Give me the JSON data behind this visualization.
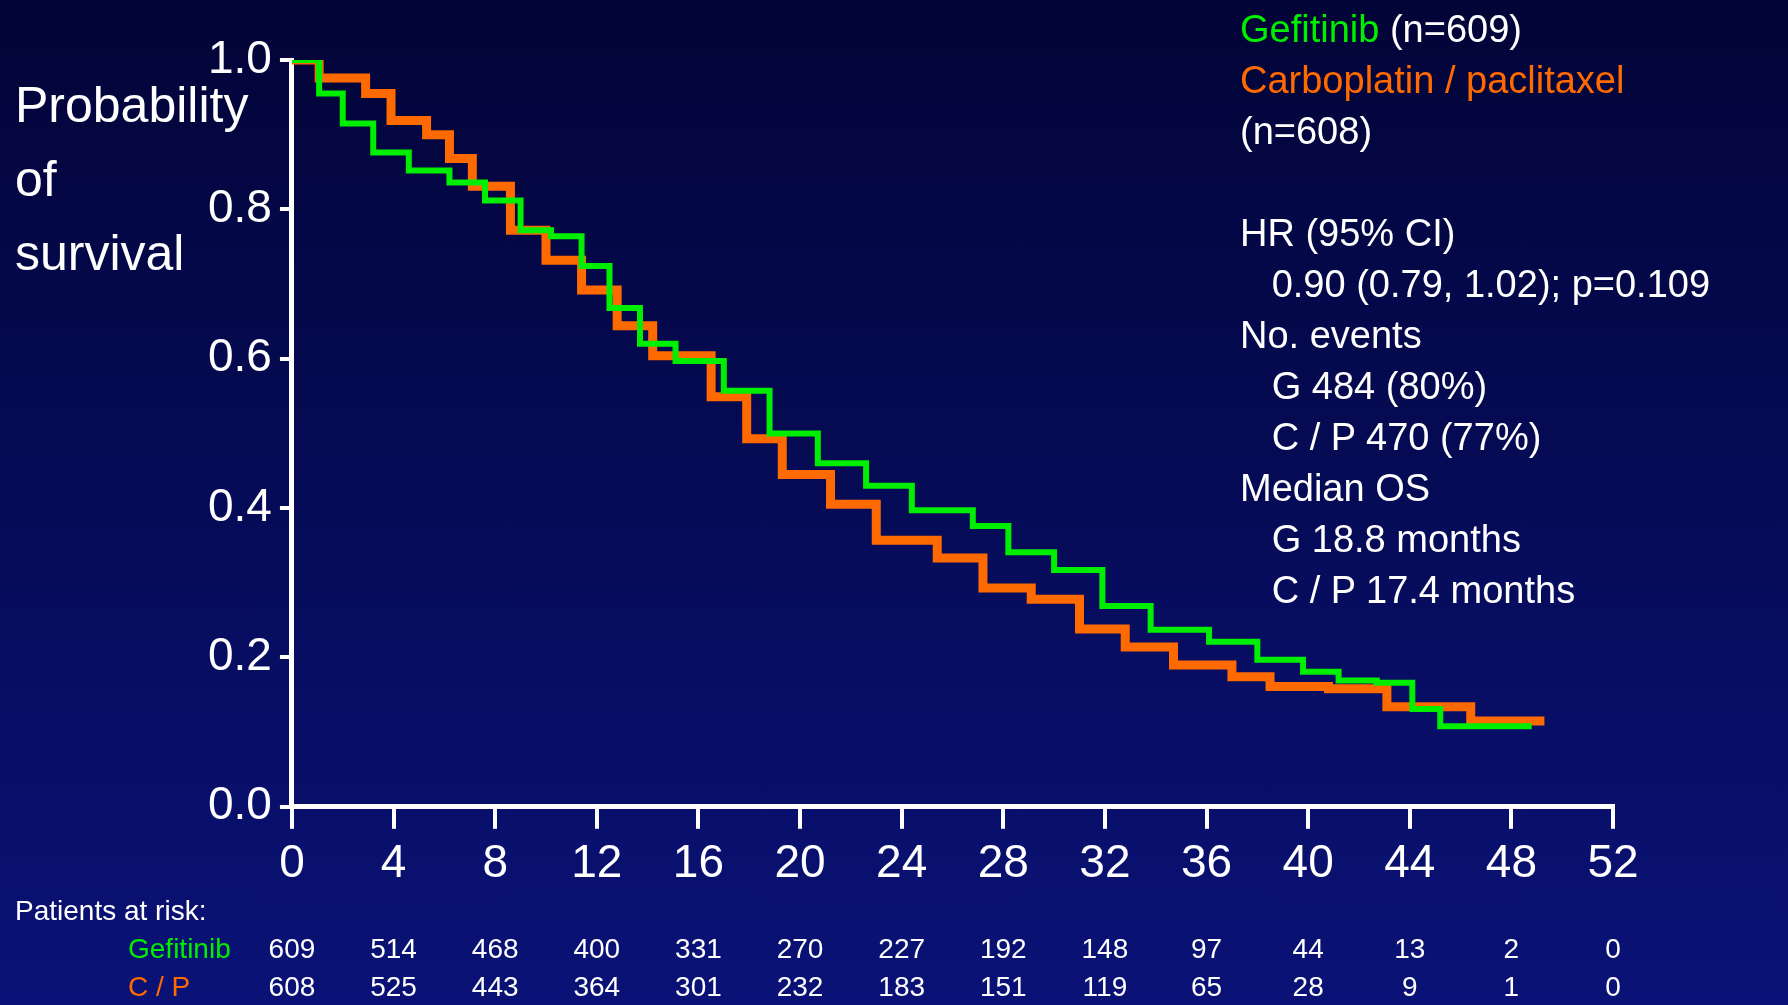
{
  "chart_data": {
    "type": "step",
    "ylabel": "Probability of survival",
    "legend": "top right",
    "xlim": [
      0,
      52
    ],
    "xticks": [
      0,
      4,
      8,
      12,
      16,
      20,
      24,
      28,
      32,
      36,
      40,
      44,
      48,
      52
    ],
    "ylim": [
      0,
      1
    ],
    "yticks": [
      {
        "value": 0,
        "label": "0.0"
      },
      {
        "value": 0.2,
        "label": "0.2"
      },
      {
        "value": 0.4,
        "label": "0.4"
      },
      {
        "value": 0.6,
        "label": "0.6"
      },
      {
        "value": 0.8,
        "label": "0.8"
      },
      {
        "value": 1,
        "label": "1.0"
      }
    ],
    "series": [
      {
        "name": "Gefitinib",
        "color": "#00ee00",
        "x": [
          0,
          1.07,
          2,
          3.2,
          4.6,
          6.2,
          7.6,
          9,
          10.2,
          11.4,
          12.5,
          13.7,
          15.1,
          17,
          18.8,
          20.7,
          22.6,
          24.4,
          26.8,
          28.2,
          30,
          31.9,
          33.8,
          36.1,
          38,
          39.8,
          41.2,
          42.7,
          44.1,
          45.2,
          48.8
        ],
        "values": [
          1,
          0.955,
          0.915,
          0.876,
          0.852,
          0.836,
          0.812,
          0.772,
          0.764,
          0.724,
          0.668,
          0.62,
          0.597,
          0.557,
          0.5,
          0.46,
          0.43,
          0.397,
          0.376,
          0.341,
          0.317,
          0.269,
          0.237,
          0.221,
          0.197,
          0.181,
          0.169,
          0.166,
          0.131,
          0.108,
          0.108
        ]
      },
      {
        "name": "Carboplatin / paclitaxel",
        "color": "#ff6a00",
        "x": [
          0,
          1.07,
          2.9,
          3.9,
          5.3,
          6.2,
          7.1,
          8.6,
          10,
          11.4,
          12.8,
          14.2,
          16.5,
          17.9,
          19.3,
          21.2,
          23,
          25.4,
          27.2,
          29.1,
          31,
          32.8,
          34.7,
          37,
          38.5,
          40.8,
          43.1,
          46.4,
          49.3
        ],
        "values": [
          1,
          0.976,
          0.955,
          0.919,
          0.9,
          0.868,
          0.831,
          0.772,
          0.732,
          0.692,
          0.644,
          0.604,
          0.549,
          0.493,
          0.445,
          0.405,
          0.357,
          0.333,
          0.293,
          0.278,
          0.238,
          0.214,
          0.19,
          0.174,
          0.161,
          0.158,
          0.134,
          0.115,
          0.115
        ]
      }
    ],
    "annotations": [
      "(n=609)",
      "(n=608)",
      "HR (95% CI)",
      "   0.90 (0.79, 1.02); p=0.109",
      "No. events",
      "   G 484 (80%)",
      "   C / P 470 (77%)",
      "Median OS",
      "   G 18.8 months",
      "   C / P 17.4 months",
      "Patients at risk:",
      "Gefitinib",
      "C / P",
      "609",
      "514",
      "468",
      "400",
      "331",
      "270",
      "227",
      "192",
      "148",
      "97",
      "44",
      "13",
      "2",
      "0",
      "608",
      "525",
      "443",
      "364",
      "301",
      "232",
      "183",
      "151",
      "119",
      "65",
      "28",
      "9",
      "1",
      "0"
    ]
  }
}
